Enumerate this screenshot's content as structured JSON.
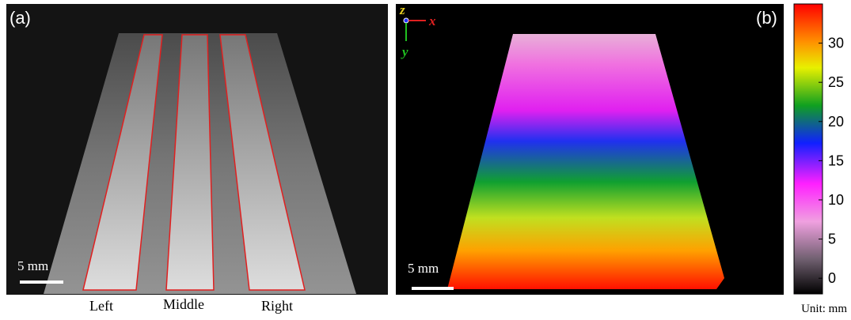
{
  "panel_a": {
    "label": "(a)",
    "scale_bar": "5 mm",
    "regions": [
      "Left",
      "Middle",
      "Right"
    ]
  },
  "panel_b": {
    "label": "(b)",
    "scale_bar": "5 mm",
    "axes": {
      "z": "z",
      "x": "x",
      "y": "y"
    }
  },
  "colorbar": {
    "lim": [
      -2,
      35
    ],
    "ticks": [
      0,
      5,
      10,
      15,
      20,
      25,
      30
    ],
    "unit": "Unit: mm"
  }
}
